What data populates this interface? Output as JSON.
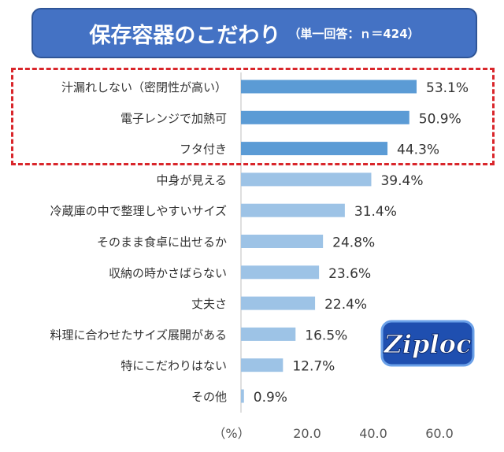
{
  "title": {
    "main": "保存容器のこだわり",
    "sub": "（単一回答：ｎ＝424）"
  },
  "logo": {
    "text": "Ziploc"
  },
  "chart_data": {
    "type": "bar",
    "orientation": "horizontal",
    "categories": [
      "汁漏れしない（密閉性が高い）",
      "電子レンジで加熱可",
      "フタ付き",
      "中身が見える",
      "冷蔵庫の中で整理しやすいサイズ",
      "そのまま食卓に出せるか",
      "収納の時かさばらない",
      "丈夫さ",
      "料理に合わせたサイズ展開がある",
      "特にこだわりはない",
      "その他"
    ],
    "values": [
      53.1,
      50.9,
      44.3,
      39.4,
      31.4,
      24.8,
      23.6,
      22.4,
      16.5,
      12.7,
      0.9
    ],
    "value_labels": [
      "53.1%",
      "50.9%",
      "44.3%",
      "39.4%",
      "31.4%",
      "24.8%",
      "23.6%",
      "22.4%",
      "16.5%",
      "12.7%",
      "0.9%"
    ],
    "highlighted_count": 3,
    "xlim": [
      0,
      70
    ],
    "x_unit_label": "（%）",
    "x_ticks": [
      "20.0",
      "40.0",
      "60.0"
    ],
    "x_tick_values": [
      20,
      40,
      60
    ],
    "colors": {
      "highlight": "#5b9bd5",
      "normal": "#9dc3e6",
      "frame": "#d9262b",
      "title_bg": "#4472c4"
    }
  }
}
